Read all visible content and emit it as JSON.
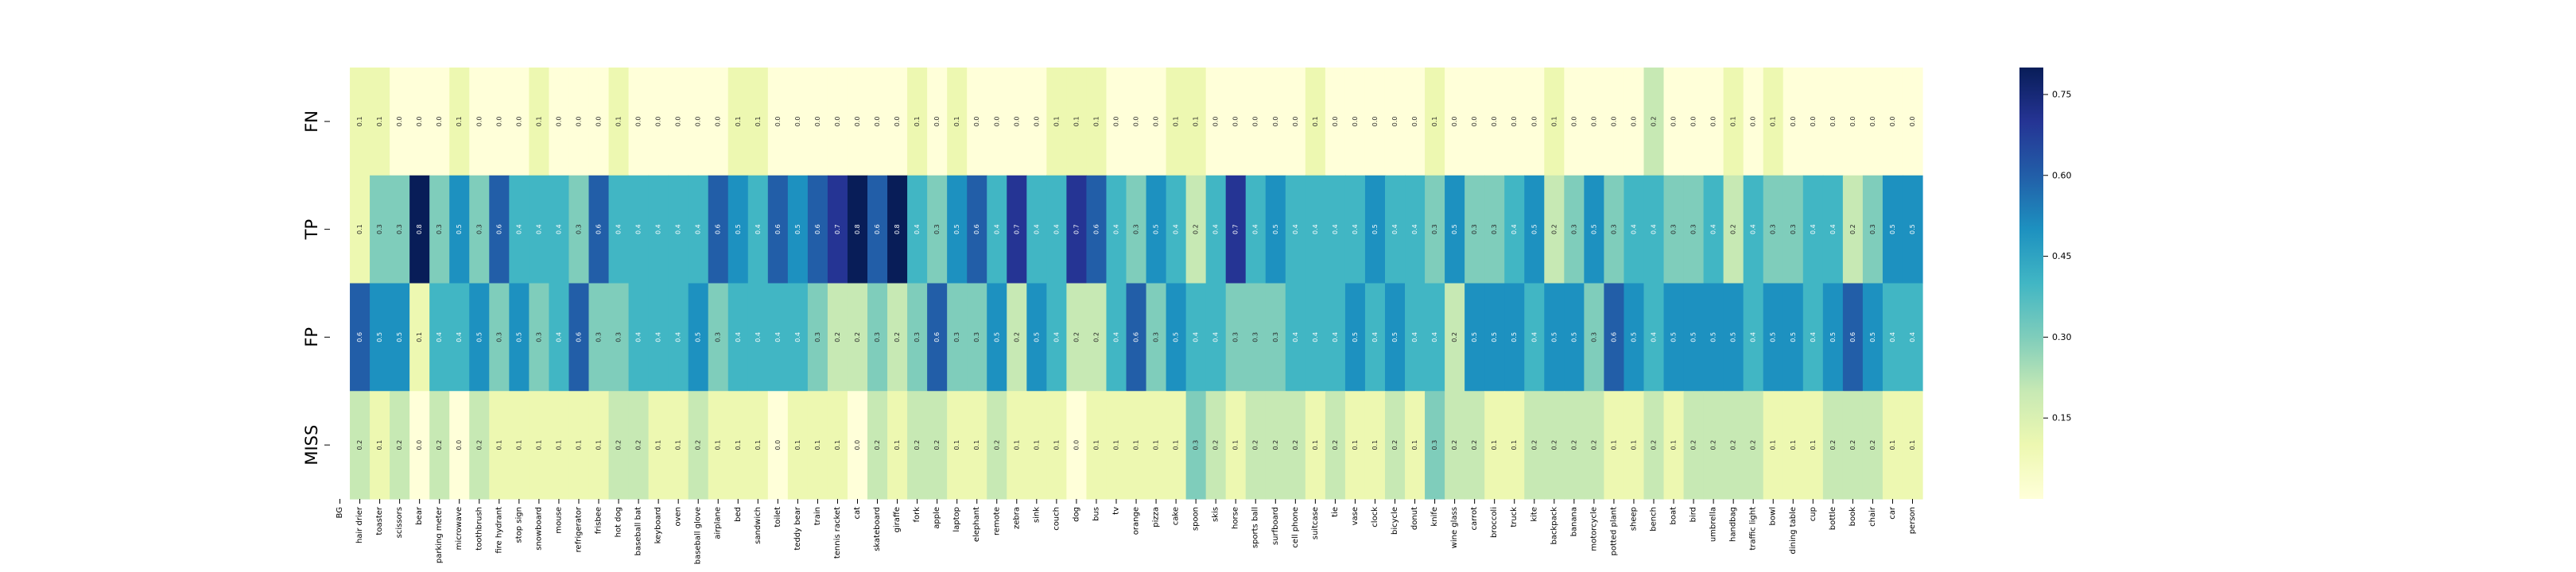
{
  "chart_data": {
    "type": "heatmap",
    "title": "",
    "xlabel": "",
    "ylabel": "",
    "rows": [
      "FN",
      "TP",
      "FP",
      "MISS"
    ],
    "columns": [
      "BG",
      "hair drier",
      "toaster",
      "scissors",
      "bear",
      "parking meter",
      "microwave",
      "toothbrush",
      "fire hydrant",
      "stop sign",
      "snowboard",
      "mouse",
      "refrigerator",
      "frisbee",
      "hot dog",
      "baseball bat",
      "keyboard",
      "oven",
      "baseball glove",
      "airplane",
      "bed",
      "sandwich",
      "toilet",
      "teddy bear",
      "train",
      "tennis racket",
      "cat",
      "skateboard",
      "giraffe",
      "fork",
      "apple",
      "laptop",
      "elephant",
      "remote",
      "zebra",
      "sink",
      "couch",
      "dog",
      "bus",
      "tv",
      "orange",
      "pizza",
      "cake",
      "spoon",
      "skis",
      "horse",
      "sports ball",
      "surfboard",
      "cell phone",
      "suitcase",
      "tie",
      "vase",
      "clock",
      "bicycle",
      "donut",
      "knife",
      "wine glass",
      "carrot",
      "broccoli",
      "truck",
      "kite",
      "backpack",
      "banana",
      "motorcycle",
      "potted plant",
      "sheep",
      "bench",
      "boat",
      "bird",
      "umbrella",
      "handbag",
      "traffic light",
      "bowl",
      "dining table",
      "cup",
      "bottle",
      "book",
      "chair",
      "car",
      "person"
    ],
    "values": [
      [
        null,
        0.1,
        0.1,
        0.0,
        0.0,
        0.0,
        0.1,
        0.0,
        0.0,
        0.0,
        0.1,
        0.0,
        0.0,
        0.0,
        0.1,
        0.0,
        0.0,
        0.0,
        0.0,
        0.0,
        0.1,
        0.1,
        0.0,
        0.0,
        0.0,
        0.0,
        0.0,
        0.0,
        0.0,
        0.1,
        0.0,
        0.1,
        0.0,
        0.0,
        0.0,
        0.0,
        0.1,
        0.1,
        0.1,
        0.0,
        0.0,
        0.0,
        0.1,
        0.1,
        0.0,
        0.0,
        0.0,
        0.0,
        0.0,
        0.1,
        0.0,
        0.0,
        0.0,
        0.0,
        0.0,
        0.1,
        0.0,
        0.0,
        0.0,
        0.0,
        0.0,
        0.1,
        0.0,
        0.0,
        0.0,
        0.0,
        0.2,
        0.0,
        0.0,
        0.0,
        0.1,
        0.0,
        0.1,
        0.0,
        0.0,
        0.0,
        0.0,
        0.0,
        0.0,
        0.0
      ],
      [
        null,
        0.1,
        0.3,
        0.3,
        0.8,
        0.3,
        0.5,
        0.3,
        0.6,
        0.4,
        0.4,
        0.4,
        0.3,
        0.6,
        0.4,
        0.4,
        0.4,
        0.4,
        0.4,
        0.6,
        0.5,
        0.4,
        0.6,
        0.5,
        0.6,
        0.7,
        0.8,
        0.6,
        0.8,
        0.4,
        0.3,
        0.5,
        0.6,
        0.4,
        0.7,
        0.4,
        0.4,
        0.7,
        0.6,
        0.4,
        0.3,
        0.5,
        0.4,
        0.2,
        0.4,
        0.7,
        0.4,
        0.5,
        0.4,
        0.4,
        0.4,
        0.4,
        0.5,
        0.4,
        0.4,
        0.3,
        0.5,
        0.3,
        0.3,
        0.4,
        0.5,
        0.2,
        0.3,
        0.5,
        0.3,
        0.4,
        0.4,
        0.3,
        0.3,
        0.4,
        0.2,
        0.4,
        0.3,
        0.3,
        0.4,
        0.4,
        0.2,
        0.3,
        0.5,
        0.5
      ],
      [
        null,
        0.6,
        0.5,
        0.5,
        0.1,
        0.4,
        0.4,
        0.5,
        0.3,
        0.5,
        0.3,
        0.4,
        0.6,
        0.3,
        0.3,
        0.4,
        0.4,
        0.4,
        0.5,
        0.3,
        0.4,
        0.4,
        0.4,
        0.4,
        0.3,
        0.2,
        0.2,
        0.3,
        0.2,
        0.3,
        0.6,
        0.3,
        0.3,
        0.5,
        0.2,
        0.5,
        0.4,
        0.2,
        0.2,
        0.4,
        0.6,
        0.3,
        0.5,
        0.4,
        0.4,
        0.3,
        0.3,
        0.3,
        0.4,
        0.4,
        0.4,
        0.5,
        0.4,
        0.5,
        0.4,
        0.4,
        0.2,
        0.5,
        0.5,
        0.5,
        0.4,
        0.5,
        0.5,
        0.3,
        0.6,
        0.5,
        0.4,
        0.5,
        0.5,
        0.5,
        0.5,
        0.4,
        0.5,
        0.5,
        0.4,
        0.5,
        0.6,
        0.5,
        0.4,
        0.4
      ],
      [
        null,
        0.2,
        0.1,
        0.2,
        0.0,
        0.2,
        0.0,
        0.2,
        0.1,
        0.1,
        0.1,
        0.1,
        0.1,
        0.1,
        0.2,
        0.2,
        0.1,
        0.1,
        0.2,
        0.1,
        0.1,
        0.1,
        0.0,
        0.1,
        0.1,
        0.1,
        0.0,
        0.2,
        0.1,
        0.2,
        0.2,
        0.1,
        0.1,
        0.2,
        0.1,
        0.1,
        0.1,
        0.0,
        0.1,
        0.1,
        0.1,
        0.1,
        0.1,
        0.3,
        0.2,
        0.1,
        0.2,
        0.2,
        0.2,
        0.1,
        0.2,
        0.1,
        0.1,
        0.2,
        0.1,
        0.3,
        0.2,
        0.2,
        0.1,
        0.1,
        0.2,
        0.2,
        0.2,
        0.2,
        0.1,
        0.1,
        0.2,
        0.1,
        0.2,
        0.2,
        0.2,
        0.2,
        0.1,
        0.1,
        0.1,
        0.2,
        0.2,
        0.2,
        0.1,
        0.1
      ]
    ],
    "colorbar": {
      "ticks": [
        0.15,
        0.3,
        0.45,
        0.6,
        0.75
      ],
      "tick_labels": [
        "0.15",
        "0.30",
        "0.45",
        "0.60",
        "0.75"
      ],
      "range": [
        0.0,
        0.8
      ],
      "colormap": "YlGnBu"
    },
    "annotations": true,
    "grid": false
  }
}
